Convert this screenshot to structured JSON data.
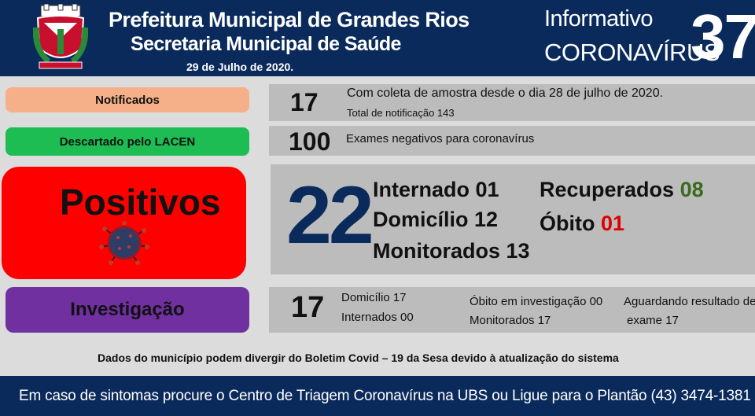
{
  "header": {
    "title1": "Prefeitura Municipal de Grandes Rios",
    "title2": "Secretaria Municipal de Saúde",
    "date": "29 de Julho de 2020.",
    "info_line1": "Informativo",
    "info_line2": "CORONAVÍRUS",
    "issue_number": "37"
  },
  "notificados": {
    "label": "Notificados",
    "value": "17",
    "line1": "Com coleta de amostra desde o dia 28 de julho de 2020.",
    "line2": "Total de notificação 143"
  },
  "descartado": {
    "label": "Descartado pelo LACEN",
    "value": "100",
    "line1": "Exames negativos para coronavírus"
  },
  "positivos": {
    "label": "Positivos",
    "value": "22",
    "internado_label": "Internado",
    "internado_value": "01",
    "domicilio_label": "Domicílio",
    "domicilio_value": "12",
    "monitorados_label": "Monitorados",
    "monitorados_value": "13",
    "recuperados_label": "Recuperados",
    "recuperados_value": "08",
    "obito_label": "Óbito",
    "obito_value": "01"
  },
  "investigacao": {
    "label": "Investigação",
    "value": "17",
    "domicilio": "Domicílio 17",
    "internados": "Internados 00",
    "obito": "Óbito em investigação 00",
    "monitorados": "Monitorados 17",
    "aguardando": "Aguardando resultado de",
    "exame": "exame 17"
  },
  "note": "Dados do município podem divergir do Boletim Covid – 19 da Sesa devido à atualização do sistema",
  "footer": "Em caso de sintomas procure o Centro de Triagem Coronavírus na UBS ou Ligue para o Plantão (43) 3474-1381",
  "colors": {
    "header_bg": "#0b2a5c",
    "notificados": "#f5b089",
    "descartado": "#1dbd54",
    "positivos": "#ff0000",
    "investigacao": "#7030a0",
    "recuperados_value": "#3a6a1e",
    "obito_value": "#e00000"
  },
  "icons": [
    "municipal-crest-icon",
    "coronavirus-icon"
  ]
}
